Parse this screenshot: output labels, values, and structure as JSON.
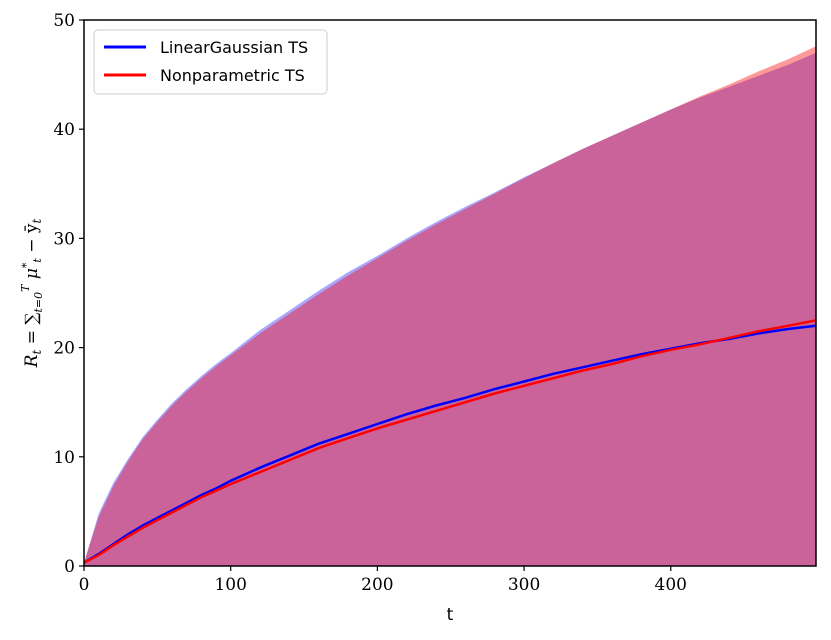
{
  "chart_data": {
    "type": "line",
    "title": "",
    "xlabel": "t",
    "ylabel": "R_t = ∑_{t=0}^{T} μ*_t − ȳ_t",
    "xlim": [
      0,
      499
    ],
    "ylim": [
      0,
      50
    ],
    "x_ticks": [
      0,
      100,
      200,
      300,
      400
    ],
    "y_ticks": [
      0,
      10,
      20,
      30,
      40,
      50
    ],
    "grid": false,
    "legend_position": "top-left",
    "x": [
      0,
      10,
      20,
      30,
      40,
      50,
      60,
      70,
      80,
      90,
      100,
      120,
      140,
      160,
      180,
      200,
      220,
      240,
      260,
      280,
      300,
      320,
      340,
      360,
      380,
      400,
      420,
      440,
      460,
      480,
      499
    ],
    "series": [
      {
        "name": "LinearGaussian TS",
        "color": "#0000ff",
        "values": [
          0.3,
          1.1,
          2.0,
          2.9,
          3.7,
          4.4,
          5.1,
          5.8,
          6.5,
          7.1,
          7.8,
          9.0,
          10.1,
          11.2,
          12.1,
          13.0,
          13.9,
          14.7,
          15.4,
          16.2,
          16.9,
          17.6,
          18.2,
          18.8,
          19.4,
          19.9,
          20.4,
          20.8,
          21.3,
          21.7,
          22.0
        ],
        "band_upper": [
          0.3,
          4.8,
          7.6,
          9.8,
          11.8,
          13.4,
          14.9,
          16.2,
          17.4,
          18.5,
          19.5,
          21.6,
          23.4,
          25.2,
          26.9,
          28.4,
          30.0,
          31.5,
          32.9,
          34.2,
          35.6,
          36.9,
          38.2,
          39.4,
          40.6,
          41.8,
          42.9,
          43.9,
          44.9,
          45.9,
          47.0
        ]
      },
      {
        "name": "Nonparametric TS",
        "color": "#ff0000",
        "values": [
          0.3,
          1.0,
          1.9,
          2.7,
          3.5,
          4.2,
          4.9,
          5.6,
          6.3,
          6.9,
          7.5,
          8.6,
          9.7,
          10.8,
          11.7,
          12.6,
          13.4,
          14.2,
          15.0,
          15.8,
          16.5,
          17.2,
          17.9,
          18.5,
          19.2,
          19.8,
          20.3,
          20.9,
          21.5,
          22.0,
          22.5
        ],
        "band_upper": [
          0.3,
          4.5,
          7.3,
          9.6,
          11.6,
          13.2,
          14.7,
          16.0,
          17.2,
          18.3,
          19.3,
          21.3,
          23.1,
          24.9,
          26.6,
          28.2,
          29.8,
          31.3,
          32.7,
          34.1,
          35.5,
          36.9,
          38.2,
          39.4,
          40.6,
          41.8,
          43.0,
          44.1,
          45.3,
          46.4,
          47.6
        ]
      }
    ]
  }
}
